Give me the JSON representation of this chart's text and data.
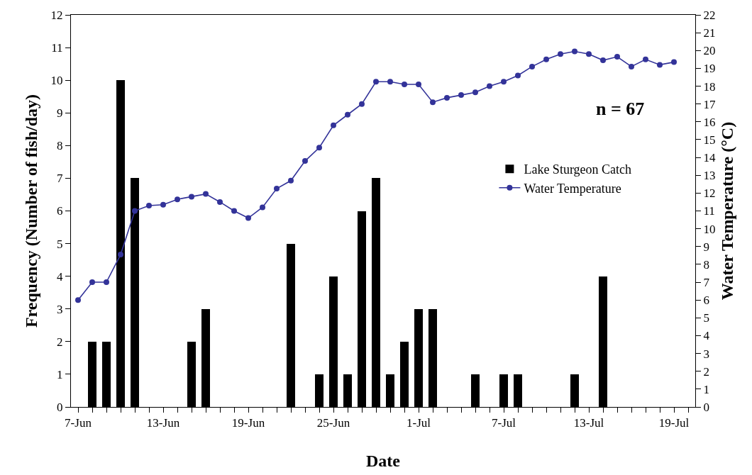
{
  "chart_data": {
    "type": "bar",
    "xlabel": "Date",
    "ylabel": "Frequency (Number of fish/day)",
    "y2label": "Water Temperature (°C)",
    "x": [
      "--06-08",
      "--06-09",
      "--06-10",
      "--06-11",
      "--06-15",
      "--06-16",
      "--06-22",
      "--06-24",
      "--06-25",
      "--06-26",
      "--06-27",
      "--06-28",
      "--06-29",
      "--06-30",
      "--07-01",
      "--07-02",
      "--07-05",
      "--07-07",
      "--07-08",
      "--07-12",
      "--07-14"
    ],
    "series": [
      {
        "name": "Lake Sturgeon Catch",
        "color": "#000000",
        "values": [
          2,
          2,
          10,
          7,
          2,
          3,
          5,
          1,
          4,
          1,
          6,
          7,
          1,
          2,
          3,
          3,
          1,
          1,
          1,
          1,
          4
        ]
      },
      {
        "name": "Water Temperature",
        "type": "line",
        "axis": "y2",
        "color": "#333399",
        "marker": "circle",
        "line_style": "solid",
        "x": [
          "--06-07",
          "--06-08",
          "--06-09",
          "--06-10",
          "--06-11",
          "--06-12",
          "--06-13",
          "--06-14",
          "--06-15",
          "--06-16",
          "--06-17",
          "--06-18",
          "--06-19",
          "--06-20",
          "--06-21",
          "--06-22",
          "--06-23",
          "--06-24",
          "--06-25",
          "--06-26",
          "--06-27",
          "--06-28",
          "--06-29",
          "--06-30",
          "--07-01",
          "--07-02",
          "--07-03",
          "--07-04",
          "--07-05",
          "--07-06",
          "--07-07",
          "--07-08",
          "--07-09",
          "--07-10",
          "--07-11",
          "--07-12",
          "--07-13",
          "--07-14",
          "--07-15",
          "--07-16",
          "--07-17",
          "--07-18",
          "--07-19"
        ],
        "values": [
          6.0,
          7.0,
          7.0,
          8.55,
          11.0,
          11.3,
          11.35,
          11.65,
          11.8,
          11.95,
          11.5,
          11.0,
          10.6,
          11.2,
          12.25,
          12.7,
          13.8,
          14.55,
          15.8,
          16.4,
          17.0,
          18.25,
          18.25,
          18.1,
          18.1,
          17.1,
          17.35,
          17.5,
          17.65,
          18.0,
          18.25,
          18.6,
          19.1,
          19.5,
          19.8,
          19.95,
          19.8,
          19.45,
          19.65,
          19.1,
          19.5,
          19.2,
          19.35
        ]
      }
    ],
    "xlim": [
      "--06-06T12:00",
      "--07-20T12:00"
    ],
    "xticks": [
      {
        "value": "--06-07",
        "label": "7-Jun"
      },
      {
        "value": "--06-08",
        "label": null
      },
      {
        "value": "--06-09",
        "label": null
      },
      {
        "value": "--06-10",
        "label": null
      },
      {
        "value": "--06-11",
        "label": null
      },
      {
        "value": "--06-12",
        "label": null
      },
      {
        "value": "--06-13",
        "label": "13-Jun"
      },
      {
        "value": "--06-14",
        "label": null
      },
      {
        "value": "--06-15",
        "label": null
      },
      {
        "value": "--06-16",
        "label": null
      },
      {
        "value": "--06-17",
        "label": null
      },
      {
        "value": "--06-18",
        "label": null
      },
      {
        "value": "--06-19",
        "label": "19-Jun"
      },
      {
        "value": "--06-20",
        "label": null
      },
      {
        "value": "--06-21",
        "label": null
      },
      {
        "value": "--06-22",
        "label": null
      },
      {
        "value": "--06-23",
        "label": null
      },
      {
        "value": "--06-24",
        "label": null
      },
      {
        "value": "--06-25",
        "label": "25-Jun"
      },
      {
        "value": "--06-26",
        "label": null
      },
      {
        "value": "--06-27",
        "label": null
      },
      {
        "value": "--06-28",
        "label": null
      },
      {
        "value": "--06-29",
        "label": null
      },
      {
        "value": "--06-30",
        "label": null
      },
      {
        "value": "--07-01",
        "label": "1-Jul"
      },
      {
        "value": "--07-02",
        "label": null
      },
      {
        "value": "--07-03",
        "label": null
      },
      {
        "value": "--07-04",
        "label": null
      },
      {
        "value": "--07-05",
        "label": null
      },
      {
        "value": "--07-06",
        "label": null
      },
      {
        "value": "--07-07",
        "label": "7-Jul"
      },
      {
        "value": "--07-08",
        "label": null
      },
      {
        "value": "--07-09",
        "label": null
      },
      {
        "value": "--07-10",
        "label": null
      },
      {
        "value": "--07-11",
        "label": null
      },
      {
        "value": "--07-12",
        "label": null
      },
      {
        "value": "--07-13",
        "label": "13-Jul"
      },
      {
        "value": "--07-14",
        "label": null
      },
      {
        "value": "--07-15",
        "label": null
      },
      {
        "value": "--07-16",
        "label": null
      },
      {
        "value": "--07-17",
        "label": null
      },
      {
        "value": "--07-18",
        "label": null
      },
      {
        "value": "--07-19",
        "label": "19-Jul"
      },
      {
        "value": "--07-20",
        "label": null
      }
    ],
    "ylim": [
      0,
      12
    ],
    "yticks": [
      0,
      1,
      2,
      3,
      4,
      5,
      6,
      7,
      8,
      9,
      10,
      11,
      12
    ],
    "y2lim": [
      0,
      22
    ],
    "y2ticks": [
      0,
      1,
      2,
      3,
      4,
      5,
      6,
      7,
      8,
      9,
      10,
      11,
      12,
      13,
      14,
      15,
      16,
      17,
      18,
      19,
      20,
      21,
      22
    ],
    "annotations": [
      "n = 67"
    ],
    "legend": "right"
  }
}
